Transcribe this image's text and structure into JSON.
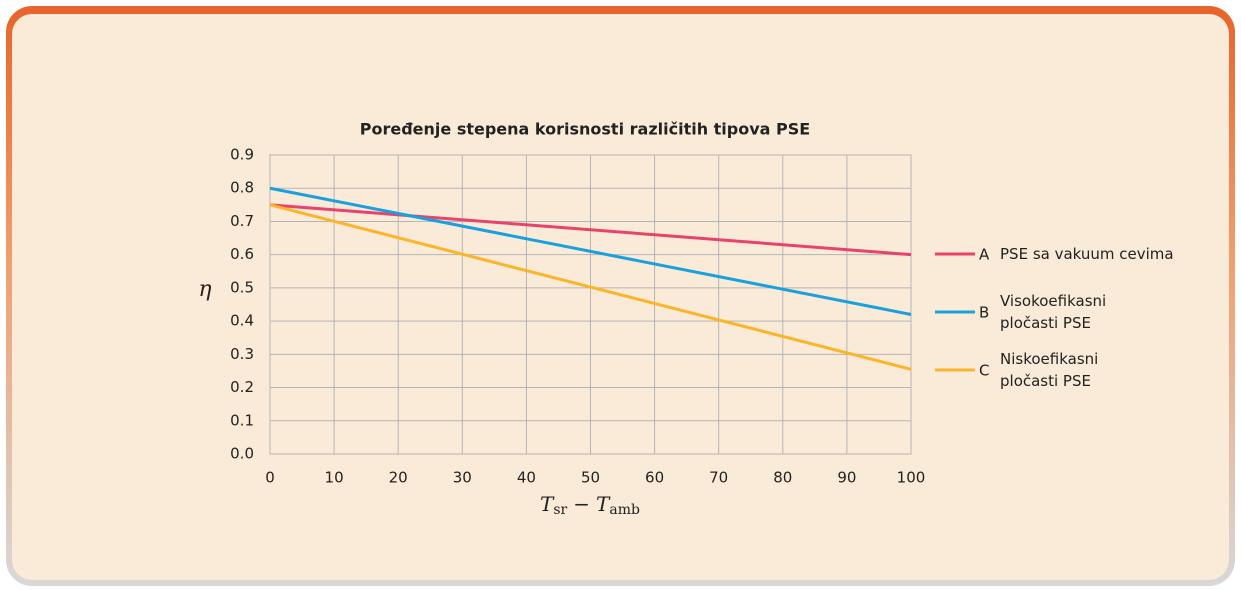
{
  "chart_data": {
    "type": "line",
    "title": "Poređenje stepena korisnosti različitih tipova PSE",
    "ylabel": "η",
    "xlabel": [
      "T",
      "sr",
      "−",
      "T",
      "amb"
    ],
    "x": [
      0,
      100
    ],
    "xlim": [
      0,
      100
    ],
    "xticks": [
      0,
      10,
      20,
      30,
      40,
      50,
      60,
      70,
      80,
      90,
      100
    ],
    "ylim": [
      0,
      0.9
    ],
    "yticks": [
      {
        "value": 0,
        "label": "0.0"
      },
      0.1,
      0.2,
      0.3,
      0.4,
      0.5,
      0.6,
      0.7,
      0.8,
      0.9
    ],
    "grid": true,
    "legend": "right",
    "series": [
      {
        "key": "A",
        "name": "PSE sa vakuum cevima",
        "color": "#e8436a",
        "values": [
          0.75,
          0.6
        ]
      },
      {
        "key": "B",
        "name": "Visokoefikasni pločasti PSE",
        "color": "#1aa0dc",
        "values": [
          0.8,
          0.42
        ]
      },
      {
        "key": "C",
        "name": "Niskoefikasni pločasti PSE",
        "color": "#fbb52a",
        "values": [
          0.75,
          0.255
        ]
      }
    ]
  }
}
